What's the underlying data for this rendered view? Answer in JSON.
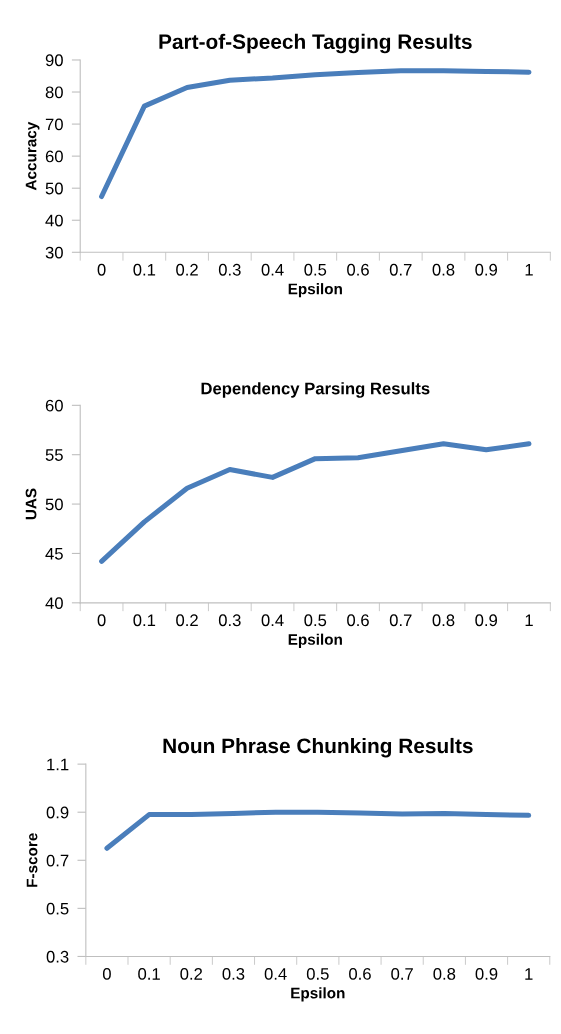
{
  "chart_data": [
    {
      "type": "line",
      "title": "Part-of-Speech Tagging Results",
      "xlabel": "Epsilon",
      "ylabel": "Accuracy",
      "categories": [
        "0",
        "0.1",
        "0.2",
        "0.3",
        "0.4",
        "0.5",
        "0.6",
        "0.7",
        "0.8",
        "0.9",
        "1"
      ],
      "series": [
        {
          "color": "#4a7ebb",
          "values": [
            47.4,
            75.6,
            81.4,
            83.7,
            84.4,
            85.4,
            86.1,
            86.6,
            86.6,
            86.4,
            86.2
          ]
        }
      ],
      "ylim": [
        30,
        90
      ],
      "yticks": [
        30,
        40,
        50,
        60,
        70,
        80,
        90
      ],
      "grid": false,
      "marker": "none",
      "line_style": "solid"
    },
    {
      "type": "line",
      "title": "Dependency Parsing Results",
      "xlabel": "Epsilon",
      "ylabel": "UAS",
      "categories": [
        "0",
        "0.1",
        "0.2",
        "0.3",
        "0.4",
        "0.5",
        "0.6",
        "0.7",
        "0.8",
        "0.9",
        "1"
      ],
      "series": [
        {
          "color": "#4a7ebb",
          "values": [
            44.2,
            48.2,
            51.6,
            53.5,
            52.7,
            54.6,
            54.7,
            55.4,
            56.1,
            55.5,
            56.1
          ]
        }
      ],
      "ylim": [
        40,
        60
      ],
      "yticks": [
        40,
        45,
        50,
        55,
        60
      ],
      "grid": false,
      "marker": "none",
      "line_style": "solid"
    },
    {
      "type": "line",
      "title": "Noun Phrase Chunking Results",
      "xlabel": "Epsilon",
      "ylabel": "F-score",
      "categories": [
        "0",
        "0.1",
        "0.2",
        "0.3",
        "0.4",
        "0.5",
        "0.6",
        "0.7",
        "0.8",
        "0.9",
        "1"
      ],
      "series": [
        {
          "color": "#4a7ebb",
          "values": [
            0.75,
            0.89,
            0.89,
            0.895,
            0.9,
            0.9,
            0.897,
            0.893,
            0.895,
            0.89,
            0.887
          ]
        }
      ],
      "ylim": [
        0.3,
        1.1
      ],
      "yticks": [
        0.3,
        0.5,
        0.7,
        0.9,
        1.1
      ],
      "grid": false,
      "marker": "none",
      "line_style": "solid"
    }
  ]
}
